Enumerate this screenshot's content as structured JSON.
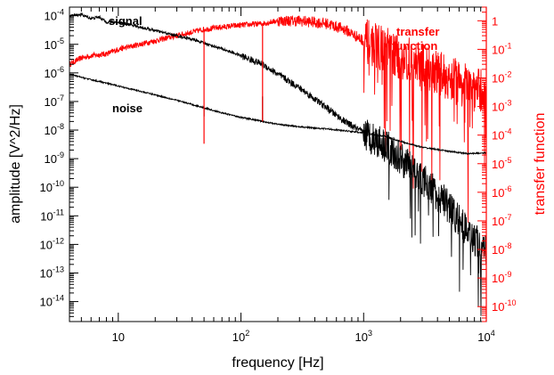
{
  "chart_data": {
    "type": "line",
    "xlabel": "frequency [Hz]",
    "ylabel": "amplitude [V^2/Hz]",
    "y2label": "transfer function",
    "xscale": "log",
    "yscale": "log",
    "y2scale": "log",
    "xlim": [
      4,
      10000
    ],
    "ylim": [
      2e-15,
      0.0002
    ],
    "y2lim": [
      3e-11,
      3
    ],
    "grid": false,
    "left_axis_color": "#000000",
    "right_axis_color": "#ff0000",
    "x_ticks": [
      {
        "value": 10,
        "label": "10"
      },
      {
        "value": 100,
        "label": "10",
        "exp": "2"
      },
      {
        "value": 1000,
        "label": "10",
        "exp": "3"
      },
      {
        "value": 10000,
        "label": "10",
        "exp": "4"
      }
    ],
    "y_ticks": [
      {
        "value": 0.0001,
        "label": "10",
        "exp": "-4"
      },
      {
        "value": 1e-05,
        "label": "10",
        "exp": "-5"
      },
      {
        "value": 1e-06,
        "label": "10",
        "exp": "-6"
      },
      {
        "value": 1e-07,
        "label": "10",
        "exp": "-7"
      },
      {
        "value": 1e-08,
        "label": "10",
        "exp": "-8"
      },
      {
        "value": 1e-09,
        "label": "10",
        "exp": "-9"
      },
      {
        "value": 1e-10,
        "label": "10",
        "exp": "-10"
      },
      {
        "value": 1e-11,
        "label": "10",
        "exp": "-11"
      },
      {
        "value": 1e-12,
        "label": "10",
        "exp": "-12"
      },
      {
        "value": 1e-13,
        "label": "10",
        "exp": "-13"
      },
      {
        "value": 1e-14,
        "label": "10",
        "exp": "-14"
      }
    ],
    "y2_ticks": [
      {
        "value": 1,
        "label": "1"
      },
      {
        "value": 0.1,
        "label": "10",
        "exp": "-1"
      },
      {
        "value": 0.01,
        "label": "10",
        "exp": "-2"
      },
      {
        "value": 0.001,
        "label": "10",
        "exp": "-3"
      },
      {
        "value": 0.0001,
        "label": "10",
        "exp": "-4"
      },
      {
        "value": 1e-05,
        "label": "10",
        "exp": "-5"
      },
      {
        "value": 1e-06,
        "label": "10",
        "exp": "-6"
      },
      {
        "value": 1e-07,
        "label": "10",
        "exp": "-7"
      },
      {
        "value": 1e-08,
        "label": "10",
        "exp": "-8"
      },
      {
        "value": 1e-09,
        "label": "10",
        "exp": "-9"
      },
      {
        "value": 1e-10,
        "label": "10",
        "exp": "-10"
      }
    ],
    "series": [
      {
        "name": "signal",
        "axis": "left",
        "color": "#000000",
        "x": [
          4,
          5,
          6,
          7,
          8,
          10,
          12,
          15,
          20,
          30,
          40,
          50,
          70,
          100,
          150,
          200,
          300,
          500,
          700,
          1000,
          1500,
          2000,
          3000,
          5000,
          7000,
          10000
        ],
        "y": [
          0.0001,
          0.00011,
          8e-05,
          9e-05,
          6e-05,
          6e-05,
          5e-05,
          4e-05,
          3e-05,
          2e-05,
          1.5e-05,
          1.1e-05,
          7e-06,
          4e-06,
          2e-06,
          9e-07,
          3e-07,
          6e-08,
          2e-08,
          8e-09,
          3e-09,
          1e-09,
          2e-10,
          2e-11,
          3e-12,
          5e-13
        ]
      },
      {
        "name": "noise",
        "axis": "left",
        "color": "#000000",
        "x": [
          4,
          5,
          7,
          10,
          15,
          20,
          30,
          50,
          70,
          100,
          150,
          200,
          300,
          500,
          700,
          1000,
          1500,
          2000,
          3000,
          5000,
          7000,
          10000
        ],
        "y": [
          9e-07,
          7e-07,
          5e-07,
          3.5e-07,
          2.3e-07,
          1.7e-07,
          1.1e-07,
          6e-08,
          4e-08,
          2.8e-08,
          2e-08,
          1.6e-08,
          1.3e-08,
          1.1e-08,
          9.5e-09,
          8e-09,
          6e-09,
          4e-09,
          2.5e-09,
          1.8e-09,
          1.5e-09,
          1.6e-09
        ]
      },
      {
        "name": "transfer function",
        "axis": "right",
        "color": "#ff0000",
        "x": [
          4,
          5,
          6,
          8,
          10,
          15,
          20,
          30,
          50,
          70,
          100,
          150,
          200,
          300,
          500,
          700,
          1000,
          1500,
          2000,
          3000,
          5000,
          7000,
          10000
        ],
        "y": [
          0.03,
          0.05,
          0.06,
          0.07,
          0.1,
          0.15,
          0.2,
          0.3,
          0.5,
          0.6,
          0.7,
          0.8,
          1,
          1,
          0.8,
          0.5,
          0.2,
          0.1,
          0.05,
          0.03,
          0.01,
          0.005,
          0.003
        ]
      }
    ],
    "notches": [
      {
        "series": "noise",
        "x": 50,
        "y": 3e-08
      },
      {
        "series": "noise",
        "x": 150,
        "y": 1.5e-07
      },
      {
        "series": "transfer function",
        "x": 50,
        "y": 5e-05
      },
      {
        "series": "transfer function",
        "x": 150,
        "y": 0.0003
      }
    ],
    "annotations": [
      {
        "text": "signal",
        "color": "#000000"
      },
      {
        "text": "noise",
        "color": "#000000"
      },
      {
        "text": "transfer",
        "color": "#ff0000"
      },
      {
        "text": "function",
        "color": "#ff0000"
      }
    ]
  }
}
